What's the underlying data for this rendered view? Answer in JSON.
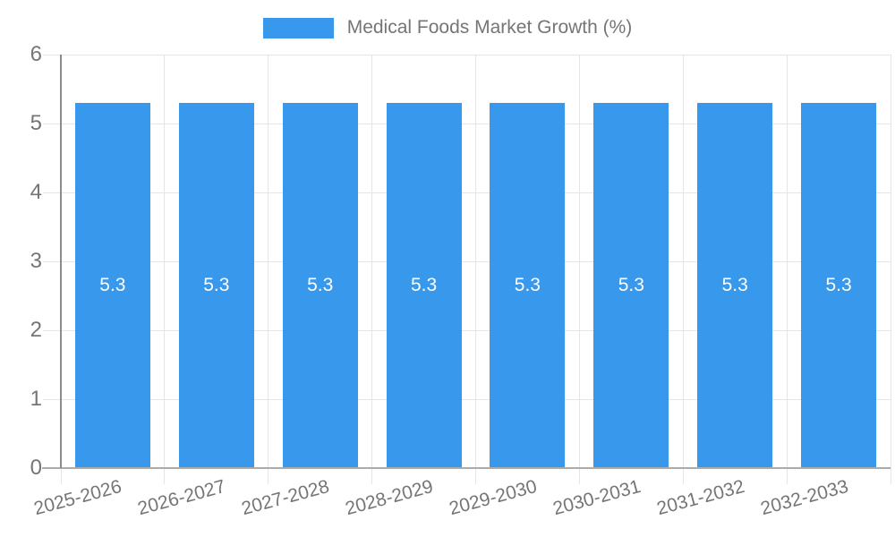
{
  "chart_data": {
    "type": "bar",
    "title": "Medical Foods Market Growth (%)",
    "categories": [
      "2025-2026",
      "2026-2027",
      "2027-2028",
      "2028-2029",
      "2029-2030",
      "2030-2031",
      "2031-2032",
      "2032-2033"
    ],
    "values": [
      5.3,
      5.3,
      5.3,
      5.3,
      5.3,
      5.3,
      5.3,
      5.3
    ],
    "xlabel": "",
    "ylabel": "",
    "ylim": [
      0,
      6
    ],
    "yticks": [
      0,
      1,
      2,
      3,
      4,
      5,
      6
    ],
    "grid": true,
    "legend_position": "top",
    "colors": {
      "bar": "#3898EC",
      "bar_label": "#FFFFFF",
      "axis_text": "#757575",
      "grid": "#E5E5E5",
      "axis_line": "#8C8C8C",
      "baseline": "#ABABAB",
      "background": "#FFFFFF"
    }
  }
}
